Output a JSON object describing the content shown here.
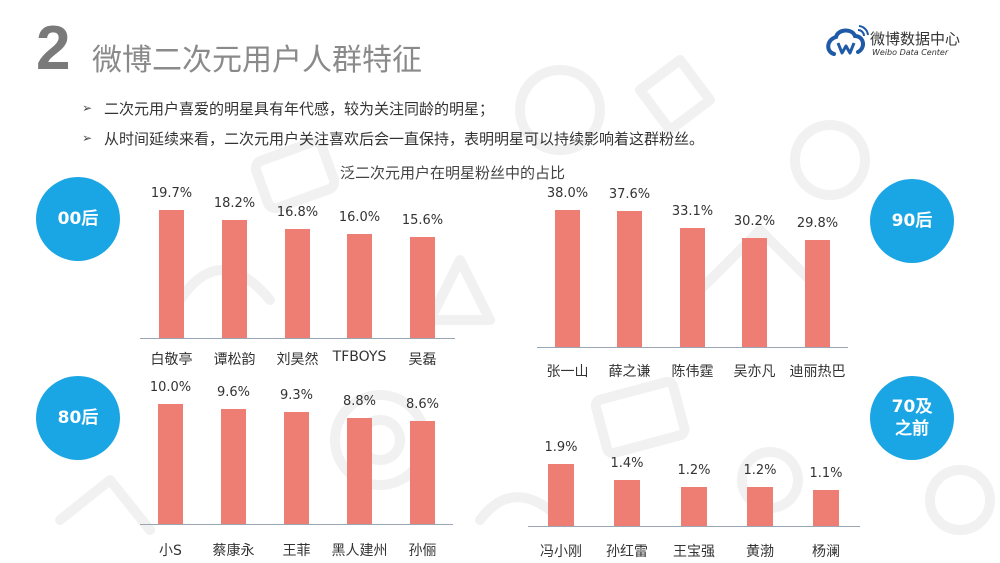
{
  "header": {
    "section_number": "2",
    "title": "微博二次元用户人群特征",
    "logo": {
      "cn": "微博数据中心",
      "en": "Weibo Data Center",
      "icon": "weibo-logo-icon"
    }
  },
  "bullets": [
    {
      "icon": "arrow-bullet-icon",
      "glyph": "➢",
      "text": "二次元用户喜爱的明星具有年代感，较为关注同龄的明星；"
    },
    {
      "icon": "arrow-bullet-icon",
      "glyph": "➢",
      "text": "从时间延续来看，二次元用户关注喜欢后会一直保持，表明明星可以持续影响着这群粉丝。"
    }
  ],
  "badges": {
    "b00": "00后",
    "b90": "90后",
    "b80": "80后",
    "b70_line1": "70及",
    "b70_line2": "之前"
  },
  "colors": {
    "bar": "#EE7E73",
    "badge": "#1AA6E4",
    "axis": "#9AA6B4",
    "title_gray": "#8A8A8A"
  },
  "chart_data": [
    {
      "type": "bar",
      "title": "泛二次元用户在明星粉丝中的占比",
      "group": "00后",
      "categories": [
        "白敬亭",
        "谭松韵",
        "刘昊然",
        "TFBOYS",
        "吴磊"
      ],
      "values": [
        19.7,
        18.2,
        16.8,
        16.0,
        15.6
      ],
      "labels": [
        "19.7%",
        "18.2%",
        "16.8%",
        "16.0%",
        "15.6%"
      ],
      "xlabel": "",
      "ylabel": "",
      "grid": false,
      "unit": "%"
    },
    {
      "type": "bar",
      "title": "泛二次元用户在明星粉丝中的占比",
      "group": "90后",
      "categories": [
        "张一山",
        "薛之谦",
        "陈伟霆",
        "吴亦凡",
        "迪丽热巴"
      ],
      "values": [
        38.0,
        37.6,
        33.1,
        30.2,
        29.8
      ],
      "labels": [
        "38.0%",
        "37.6%",
        "33.1%",
        "30.2%",
        "29.8%"
      ],
      "xlabel": "",
      "ylabel": "",
      "grid": false,
      "unit": "%"
    },
    {
      "type": "bar",
      "title": "泛二次元用户在明星粉丝中的占比",
      "group": "80后",
      "categories": [
        "小S",
        "蔡康永",
        "王菲",
        "黑人建州",
        "孙俪"
      ],
      "values": [
        10.0,
        9.6,
        9.3,
        8.8,
        8.6
      ],
      "labels": [
        "10.0%",
        "9.6%",
        "9.3%",
        "8.8%",
        "8.6%"
      ],
      "xlabel": "",
      "ylabel": "",
      "grid": false,
      "unit": "%"
    },
    {
      "type": "bar",
      "title": "泛二次元用户在明星粉丝中的占比",
      "group": "70及之前",
      "categories": [
        "冯小刚",
        "孙红雷",
        "王宝强",
        "黄渤",
        "杨澜"
      ],
      "values": [
        1.9,
        1.4,
        1.2,
        1.2,
        1.1
      ],
      "labels": [
        "1.9%",
        "1.4%",
        "1.2%",
        "1.2%",
        "1.1%"
      ],
      "xlabel": "",
      "ylabel": "",
      "grid": false,
      "unit": "%"
    }
  ]
}
